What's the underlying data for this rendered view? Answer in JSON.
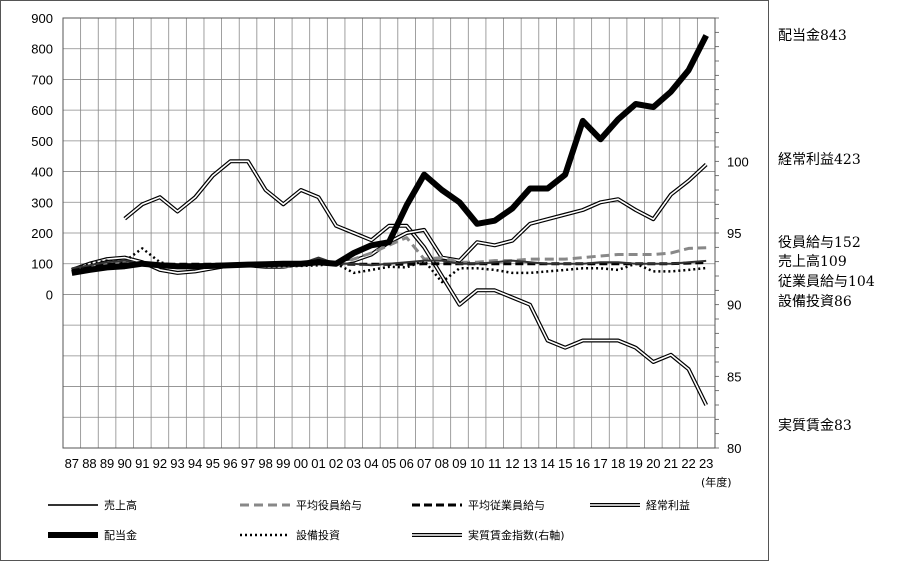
{
  "chart_data": {
    "type": "line",
    "xlabel": "(年度)",
    "categories": [
      "87",
      "88",
      "89",
      "90",
      "91",
      "92",
      "93",
      "94",
      "95",
      "96",
      "97",
      "98",
      "99",
      "00",
      "01",
      "02",
      "03",
      "04",
      "05",
      "06",
      "07",
      "08",
      "09",
      "10",
      "11",
      "12",
      "13",
      "14",
      "15",
      "16",
      "17",
      "18",
      "19",
      "20",
      "21",
      "22",
      "23"
    ],
    "y_left": {
      "ticks": [
        0,
        100,
        200,
        300,
        400,
        500,
        600,
        700,
        800,
        900
      ],
      "ylim": [
        -500,
        900
      ]
    },
    "y_right": {
      "ticks": [
        80,
        85,
        90,
        95,
        100
      ],
      "ylim": [
        80,
        110
      ]
    },
    "grid": true,
    "legend_position": "bottom",
    "series": [
      {
        "name": "売上高",
        "axis": "left",
        "style": "thin-solid",
        "values": [
          85,
          95,
          105,
          110,
          100,
          90,
          85,
          85,
          90,
          95,
          100,
          100,
          95,
          100,
          120,
          100,
          100,
          95,
          100,
          105,
          110,
          110,
          100,
          100,
          105,
          110,
          105,
          100,
          100,
          100,
          105,
          105,
          100,
          100,
          100,
          105,
          109
        ]
      },
      {
        "name": "平均役員給与",
        "axis": "left",
        "style": "gray-dashed",
        "values": [
          80,
          90,
          100,
          105,
          100,
          95,
          90,
          90,
          90,
          95,
          100,
          95,
          90,
          95,
          100,
          100,
          115,
          135,
          160,
          185,
          115,
          120,
          105,
          105,
          110,
          110,
          115,
          115,
          115,
          120,
          125,
          130,
          130,
          130,
          135,
          150,
          152
        ]
      },
      {
        "name": "平均従業員給与",
        "axis": "left",
        "style": "black-dashed",
        "values": [
          80,
          90,
          97,
          100,
          100,
          98,
          98,
          98,
          98,
          98,
          100,
          100,
          100,
          100,
          100,
          100,
          98,
          98,
          98,
          98,
          100,
          100,
          100,
          100,
          100,
          100,
          100,
          100,
          100,
          100,
          100,
          100,
          100,
          100,
          100,
          102,
          104
        ]
      },
      {
        "name": "経常利益",
        "axis": "left",
        "style": "double",
        "values": [
          80,
          100,
          115,
          120,
          105,
          80,
          70,
          75,
          85,
          95,
          95,
          90,
          90,
          100,
          110,
          100,
          110,
          130,
          170,
          200,
          210,
          120,
          110,
          170,
          160,
          175,
          230,
          245,
          260,
          275,
          300,
          310,
          275,
          245,
          325,
          370,
          423
        ]
      },
      {
        "name": "配当金",
        "axis": "left",
        "style": "thick-solid",
        "values": [
          70,
          80,
          88,
          92,
          100,
          95,
          92,
          92,
          93,
          95,
          97,
          98,
          100,
          100,
          105,
          100,
          135,
          160,
          170,
          290,
          390,
          340,
          300,
          230,
          240,
          280,
          345,
          345,
          390,
          565,
          505,
          570,
          620,
          610,
          660,
          730,
          843
        ]
      },
      {
        "name": "設備投資",
        "axis": "left",
        "style": "dotted",
        "values": [
          80,
          100,
          110,
          108,
          150,
          105,
          92,
          92,
          92,
          92,
          100,
          92,
          92,
          93,
          95,
          100,
          70,
          80,
          90,
          88,
          110,
          40,
          85,
          85,
          80,
          70,
          70,
          75,
          80,
          85,
          85,
          80,
          100,
          75,
          75,
          80,
          86
        ]
      },
      {
        "name": "実質賃金指数(右軸)",
        "axis": "right",
        "style": "double",
        "values": [
          null,
          null,
          null,
          96,
          97,
          97.5,
          96.5,
          97.5,
          99,
          100,
          100,
          98,
          97,
          98,
          97.5,
          95.5,
          95,
          94.5,
          95.5,
          95.5,
          94,
          92,
          90,
          91,
          91,
          90.5,
          90,
          87.5,
          87,
          87.5,
          87.5,
          87.5,
          87,
          86,
          86.5,
          85.5,
          83
        ]
      }
    ]
  },
  "right_labels": {
    "dividend": "配当金843",
    "ordinary_profit": "経常利益423",
    "officer_pay": "役員給与152",
    "sales": "売上高109",
    "employee_pay": "従業員給与104",
    "capex": "設備投資86",
    "real_wage": "実質賃金83"
  }
}
